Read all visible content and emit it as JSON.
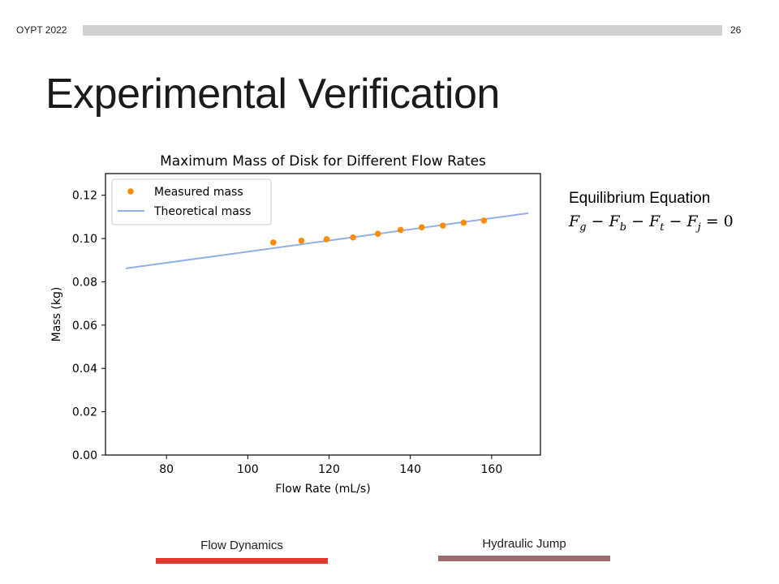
{
  "header": {
    "label": "OYPT 2022",
    "page_number": "26"
  },
  "slide": {
    "title": "Experimental Verification"
  },
  "equation": {
    "title": "Equilibrium Equation",
    "terms": [
      {
        "base": "F",
        "sub": "g"
      },
      {
        "base": "F",
        "sub": "b"
      },
      {
        "base": "F",
        "sub": "t"
      },
      {
        "base": "F",
        "sub": "j"
      }
    ],
    "operator": "−",
    "rhs": "= 0"
  },
  "footer": {
    "left_label": "Flow Dynamics",
    "right_label": "Hydraulic Jump",
    "left_color": "#e0392b",
    "right_color": "#a06a6e"
  },
  "chart_data": {
    "type": "scatter",
    "title": "Maximum Mass of Disk for Different Flow Rates",
    "xlabel": "Flow Rate (mL/s)",
    "ylabel": "Mass (kg)",
    "xlim": [
      65,
      172
    ],
    "ylim": [
      0,
      0.13
    ],
    "xticks": [
      80,
      100,
      120,
      140,
      160
    ],
    "yticks": [
      0.0,
      0.02,
      0.04,
      0.06,
      0.08,
      0.1,
      0.12
    ],
    "ytick_labels": [
      "0.00",
      "0.02",
      "0.04",
      "0.06",
      "0.08",
      "0.10",
      "0.12"
    ],
    "legend_position": "top-left",
    "series": [
      {
        "name": "Measured mass",
        "kind": "scatter",
        "color": "#ff8c00",
        "x": [
          106.3,
          113.2,
          119.4,
          125.9,
          132.0,
          137.6,
          142.8,
          148.0,
          153.1,
          158.1
        ],
        "y": [
          0.0982,
          0.099,
          0.0997,
          0.1005,
          0.1022,
          0.104,
          0.1052,
          0.106,
          0.1073,
          0.1083
        ]
      },
      {
        "name": "Theoretical mass",
        "kind": "line",
        "color": "#8fb0e8",
        "x": [
          70,
          169
        ],
        "y": [
          0.0862,
          0.1117
        ]
      }
    ]
  }
}
